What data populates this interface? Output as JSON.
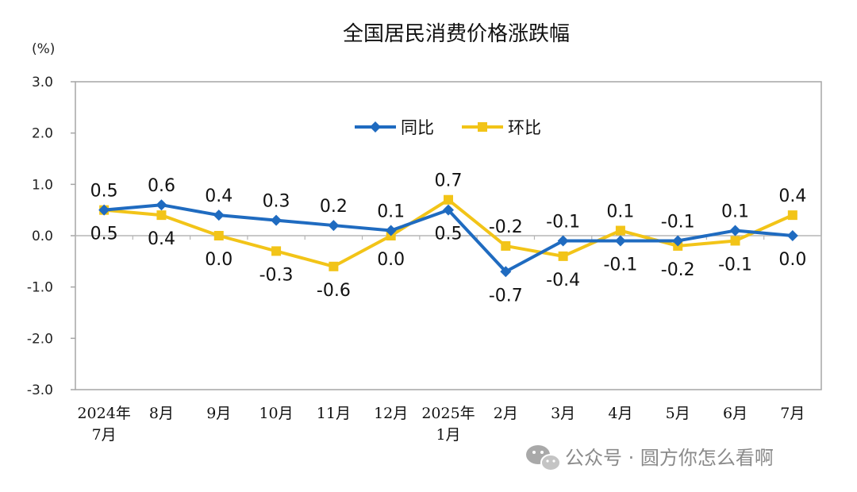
{
  "chart_data": {
    "type": "line",
    "title": "全国居民消费价格涨跌幅",
    "unit_label": "(%)",
    "ylim": [
      -3.0,
      3.0
    ],
    "yticks": [
      "3.0",
      "2.0",
      "1.0",
      "0.0",
      "-1.0",
      "-2.0",
      "-3.0"
    ],
    "categories": [
      [
        "2024年",
        "7月"
      ],
      [
        "8月"
      ],
      [
        "9月"
      ],
      [
        "10月"
      ],
      [
        "11月"
      ],
      [
        "12月"
      ],
      [
        "2025年",
        "1月"
      ],
      [
        "2月"
      ],
      [
        "3月"
      ],
      [
        "4月"
      ],
      [
        "5月"
      ],
      [
        "6月"
      ],
      [
        "7月"
      ]
    ],
    "series": [
      {
        "name": "同比",
        "color": "#1F6BC0",
        "marker": "diamond",
        "values": [
          0.5,
          0.6,
          0.4,
          0.3,
          0.2,
          0.1,
          0.5,
          -0.7,
          -0.1,
          -0.1,
          -0.1,
          0.1,
          0.0
        ],
        "labels": [
          "0.5",
          "0.6",
          "0.4",
          "0.3",
          "0.2",
          "0.1",
          "0.5",
          "-0.7",
          "-0.1",
          "-0.1",
          "-0.1",
          "0.1",
          "0.0"
        ],
        "label_pos": [
          "above",
          "above",
          "above",
          "above",
          "above",
          "above",
          "below",
          "below",
          "above",
          "below",
          "above",
          "above",
          "below"
        ]
      },
      {
        "name": "环比",
        "color": "#F2C418",
        "marker": "square",
        "values": [
          0.5,
          0.4,
          0.0,
          -0.3,
          -0.6,
          0.0,
          0.7,
          -0.2,
          -0.4,
          0.1,
          -0.2,
          -0.1,
          0.4
        ],
        "labels": [
          "0.5",
          "0.4",
          "0.0",
          "-0.3",
          "-0.6",
          "0.0",
          "0.7",
          "-0.2",
          "-0.4",
          "0.1",
          "-0.2",
          "-0.1",
          "0.4"
        ],
        "label_pos": [
          "below",
          "below",
          "below",
          "below",
          "below",
          "below",
          "above",
          "above",
          "below",
          "above",
          "below",
          "below",
          "above"
        ]
      }
    ],
    "legend": {
      "position": "top-center"
    },
    "grid": false
  },
  "watermark": {
    "icon": "wechat-icon",
    "text": "公众号 · 圆方你怎么看啊"
  }
}
